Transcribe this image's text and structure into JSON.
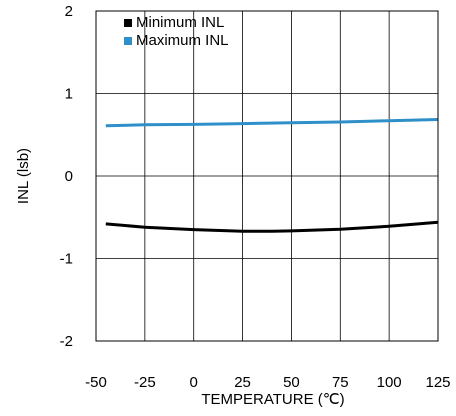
{
  "chart_data": {
    "type": "line",
    "title": "",
    "xlabel": "TEMPERATURE (℃)",
    "ylabel": "INL (lsb)",
    "xlim": [
      -50,
      125
    ],
    "ylim": [
      -2,
      2
    ],
    "x_ticks": [
      -50,
      -25,
      0,
      25,
      50,
      75,
      100,
      125
    ],
    "y_ticks": [
      2,
      1,
      0,
      -1,
      -2
    ],
    "x_tick_labels": [
      "-50",
      "-25",
      "0",
      "25",
      "50",
      "75",
      "100",
      "125"
    ],
    "y_tick_labels": [
      "2",
      "1",
      "0",
      "-1",
      "-2"
    ],
    "grid": true,
    "legend_position": "top-left",
    "series": [
      {
        "name": "Minimum INL",
        "color": "#000000",
        "x": [
          -45,
          -25,
          0,
          25,
          40,
          50,
          75,
          100,
          125
        ],
        "y": [
          -0.58,
          -0.62,
          -0.65,
          -0.67,
          -0.67,
          -0.665,
          -0.645,
          -0.61,
          -0.56
        ]
      },
      {
        "name": "Maximum INL",
        "color": "#2f8fc8",
        "x": [
          -45,
          -25,
          0,
          25,
          50,
          75,
          100,
          125
        ],
        "y": [
          0.61,
          0.62,
          0.625,
          0.635,
          0.645,
          0.655,
          0.67,
          0.685
        ]
      }
    ]
  }
}
